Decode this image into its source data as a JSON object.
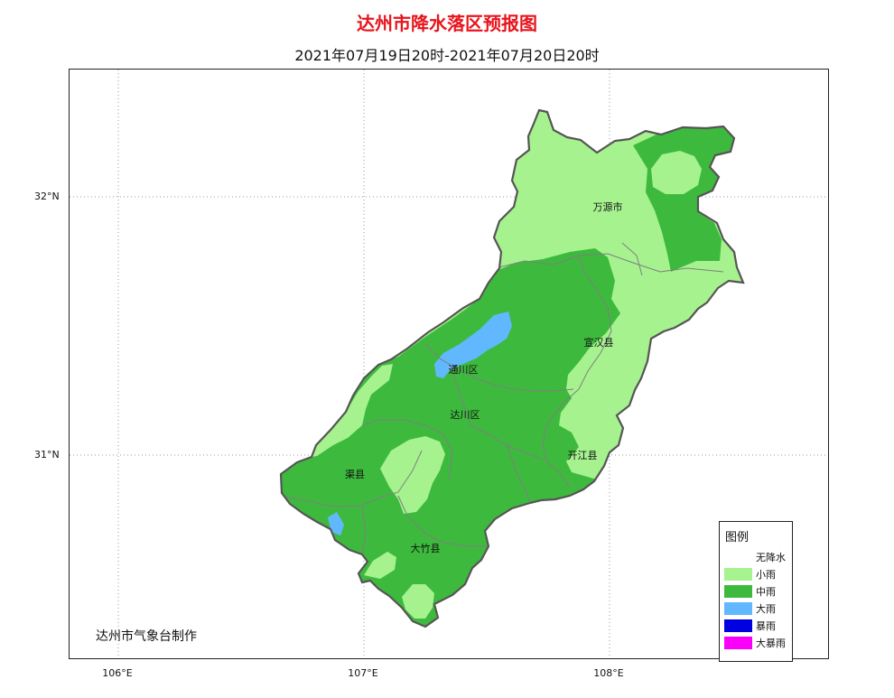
{
  "title": "达州市降水落区预报图",
  "subtitle": "2021年07月19日20时-2021年07月20日20时",
  "credit": "达州市气象台制作",
  "axes": {
    "lat_ticks": [
      "32°N",
      "31°N"
    ],
    "lon_ticks": [
      "106°E",
      "107°E",
      "108°E"
    ]
  },
  "regions": [
    {
      "name": "万源市"
    },
    {
      "name": "宣汉县"
    },
    {
      "name": "通川区"
    },
    {
      "name": "达川区"
    },
    {
      "name": "开江县"
    },
    {
      "name": "渠县"
    },
    {
      "name": "大竹县"
    }
  ],
  "legend": {
    "title": "图例",
    "items": [
      {
        "label": "无降水",
        "color": "#ffffff"
      },
      {
        "label": "小雨",
        "color": "#a6f28f"
      },
      {
        "label": "中雨",
        "color": "#3dba3d"
      },
      {
        "label": "大雨",
        "color": "#61b8ff"
      },
      {
        "label": "暴雨",
        "color": "#0000e1"
      },
      {
        "label": "大暴雨",
        "color": "#fa00fa"
      }
    ]
  },
  "colors": {
    "title": "#e8141c",
    "light_rain": "#a6f28f",
    "moderate_rain": "#3dba3d",
    "heavy_rain": "#61b8ff",
    "border": "#555555"
  }
}
